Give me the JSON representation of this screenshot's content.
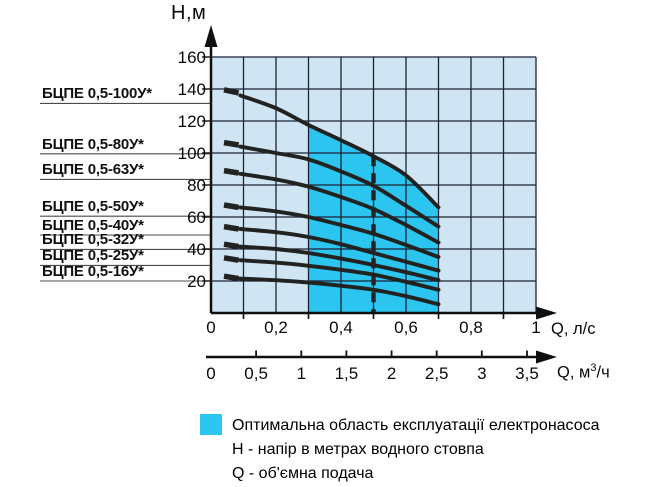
{
  "colors": {
    "plot_background": "#CFE5F3",
    "optimal_region": "#2BC5F0",
    "grid_line": "#1C2233",
    "curve": "#222220",
    "axis": "#0F0F0F",
    "leader_line": "#4A4A4A",
    "text": "#0A0A0A"
  },
  "chart_data": {
    "type": "line",
    "title": "",
    "grid": true,
    "y_axis": {
      "label": "Н,м",
      "range": [
        0,
        160
      ],
      "grid_step": 20,
      "ticks": [
        20,
        40,
        60,
        80,
        100,
        120,
        140,
        160
      ],
      "tick_labels": [
        "20",
        "40",
        "60",
        "80",
        "100",
        "120",
        "140",
        "160"
      ]
    },
    "x_axis_primary": {
      "label": "Q, л/с",
      "range": [
        0,
        1
      ],
      "grid_step": 0.1,
      "ticks": [
        0,
        0.2,
        0.4,
        0.6,
        0.8,
        1
      ],
      "tick_labels": [
        "0",
        "0,2",
        "0,4",
        "0,6",
        "0,8",
        "1"
      ],
      "minor_ticks": [
        0.1,
        0.3,
        0.5,
        0.7,
        0.9
      ]
    },
    "x_axis_secondary": {
      "label_prefix": "Q, м",
      "label_sup": "3",
      "label_suffix": "/ч",
      "conversion_from_primary_l_per_s": 3.6,
      "ticks": [
        0,
        0.5,
        1,
        1.5,
        2,
        2.5,
        3,
        3.5
      ],
      "tick_labels": [
        "0",
        "0,5",
        "1",
        "1,5",
        "2",
        "2,5",
        "3",
        "3,5"
      ]
    },
    "optimal_region": {
      "q_min": 0.3,
      "q_max": 0.7
    },
    "nominal_flow_line": {
      "q": 0.5,
      "style": "dashed"
    },
    "series": [
      {
        "name": "БЦПЕ 0,5-100У*",
        "leader_h": 131,
        "shutoff_dash": [
          [
            0.04,
            139.5
          ],
          [
            0.085,
            137.5
          ]
        ],
        "points": [
          [
            0.09,
            136
          ],
          [
            0.2,
            128
          ],
          [
            0.3,
            117.5
          ],
          [
            0.4,
            108
          ],
          [
            0.5,
            98
          ],
          [
            0.6,
            86
          ],
          [
            0.7,
            66
          ]
        ]
      },
      {
        "name": "БЦПЕ 0,5-80У*",
        "leader_h": 99.5,
        "shutoff_dash": [
          [
            0.04,
            106.5
          ],
          [
            0.085,
            105
          ]
        ],
        "points": [
          [
            0.09,
            104
          ],
          [
            0.2,
            100
          ],
          [
            0.3,
            96
          ],
          [
            0.4,
            88.5
          ],
          [
            0.5,
            79.5
          ],
          [
            0.6,
            67
          ],
          [
            0.7,
            54
          ]
        ]
      },
      {
        "name": "БЦПЕ 0,5-63У*",
        "leader_h": 83.5,
        "shutoff_dash": [
          [
            0.04,
            89
          ],
          [
            0.085,
            87.5
          ]
        ],
        "points": [
          [
            0.09,
            87
          ],
          [
            0.2,
            83.5
          ],
          [
            0.3,
            79
          ],
          [
            0.4,
            72.5
          ],
          [
            0.5,
            65
          ],
          [
            0.6,
            55
          ],
          [
            0.7,
            44
          ]
        ]
      },
      {
        "name": "БЦПЕ 0,5-50У*",
        "leader_h": 60.5,
        "shutoff_dash": [
          [
            0.04,
            67.5
          ],
          [
            0.085,
            66
          ]
        ],
        "points": [
          [
            0.09,
            66
          ],
          [
            0.2,
            63.5
          ],
          [
            0.3,
            60
          ],
          [
            0.4,
            55
          ],
          [
            0.5,
            49.5
          ],
          [
            0.6,
            42.5
          ],
          [
            0.7,
            35
          ]
        ]
      },
      {
        "name": "БЦПЕ 0,5-40У*",
        "leader_h": 48.75,
        "shutoff_dash": [
          [
            0.04,
            54
          ],
          [
            0.085,
            52.5
          ]
        ],
        "points": [
          [
            0.09,
            52.5
          ],
          [
            0.2,
            50.5
          ],
          [
            0.3,
            47.5
          ],
          [
            0.4,
            43
          ],
          [
            0.5,
            37.5
          ],
          [
            0.6,
            32
          ],
          [
            0.7,
            26.5
          ]
        ]
      },
      {
        "name": "БЦПЕ 0,5-32У*",
        "leader_h": 39.75,
        "shutoff_dash": [
          [
            0.04,
            43
          ],
          [
            0.085,
            41.5
          ]
        ],
        "points": [
          [
            0.09,
            41.5
          ],
          [
            0.2,
            40
          ],
          [
            0.3,
            37.5
          ],
          [
            0.4,
            34
          ],
          [
            0.5,
            30
          ],
          [
            0.6,
            25.5
          ],
          [
            0.7,
            20.5
          ]
        ]
      },
      {
        "name": "БЦПЕ 0,5-25У*",
        "leader_h": 29.75,
        "shutoff_dash": [
          [
            0.04,
            34.5
          ],
          [
            0.085,
            33
          ]
        ],
        "points": [
          [
            0.09,
            33
          ],
          [
            0.2,
            31.5
          ],
          [
            0.3,
            29.5
          ],
          [
            0.4,
            27
          ],
          [
            0.5,
            24
          ],
          [
            0.6,
            19.5
          ],
          [
            0.7,
            14.5
          ]
        ]
      },
      {
        "name": "БЦПЕ 0,5-16У*",
        "leader_h": 20,
        "shutoff_dash": [
          [
            0.04,
            23
          ],
          [
            0.085,
            21.5
          ]
        ],
        "points": [
          [
            0.09,
            21.5
          ],
          [
            0.2,
            20.5
          ],
          [
            0.3,
            19
          ],
          [
            0.4,
            17
          ],
          [
            0.5,
            14.5
          ],
          [
            0.6,
            10.5
          ],
          [
            0.7,
            5.5
          ]
        ]
      }
    ]
  },
  "legend": {
    "swatch_color": "#2BC7F2",
    "items": [
      "Оптимальна область експлуатації електронасоса",
      "Н - напір в метрах водного стовпа",
      "Q - об'ємна подача"
    ]
  }
}
